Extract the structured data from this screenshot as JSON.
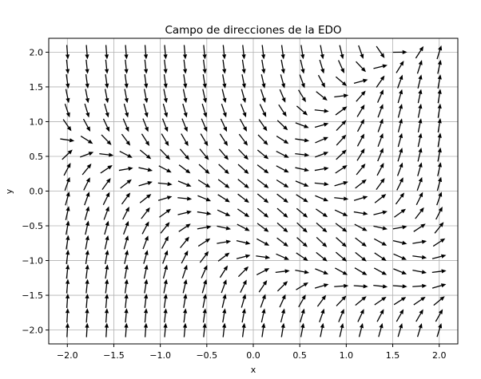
{
  "chart_data": {
    "type": "quiver",
    "title": "Campo de direcciones de la EDO",
    "xlabel": "x",
    "ylabel": "y",
    "xlim": [
      -2.2,
      2.2
    ],
    "ylim": [
      -2.2,
      2.2
    ],
    "grid": true,
    "xticks": [
      -2.0,
      -1.5,
      -1.0,
      -0.5,
      0.0,
      0.5,
      1.0,
      1.5,
      2.0
    ],
    "yticks": [
      -2.0,
      -1.5,
      -1.0,
      -0.5,
      0.0,
      0.5,
      1.0,
      1.5,
      2.0
    ],
    "xtick_labels": [
      "−2.0",
      "−1.5",
      "−1.0",
      "−0.5",
      "0.0",
      "0.5",
      "1.0",
      "1.5",
      "2.0"
    ],
    "ytick_labels": [
      "−2.0",
      "−1.5",
      "−1.0",
      "−0.5",
      "0.0",
      "0.5",
      "1.0",
      "1.5",
      "2.0"
    ],
    "grid_x": [
      -2.0,
      -1.7895,
      -1.5789,
      -1.3684,
      -1.1579,
      -0.9474,
      -0.7368,
      -0.5263,
      -0.3158,
      -0.1053,
      0.1053,
      0.3158,
      0.5263,
      0.7368,
      0.9474,
      1.1579,
      1.3684,
      1.5789,
      1.7895,
      2.0
    ],
    "grid_y": [
      -2.0,
      -1.7895,
      -1.5789,
      -1.3684,
      -1.1579,
      -0.9474,
      -0.7368,
      -0.5263,
      -0.3158,
      -0.1053,
      0.1053,
      0.3158,
      0.5263,
      0.7368,
      0.9474,
      1.1579,
      1.3684,
      1.5789,
      1.7895,
      2.0
    ],
    "arrow_style": "unit direction vectors, black",
    "arrow_color": "#000000",
    "grid_color": "#b0b0b0"
  }
}
